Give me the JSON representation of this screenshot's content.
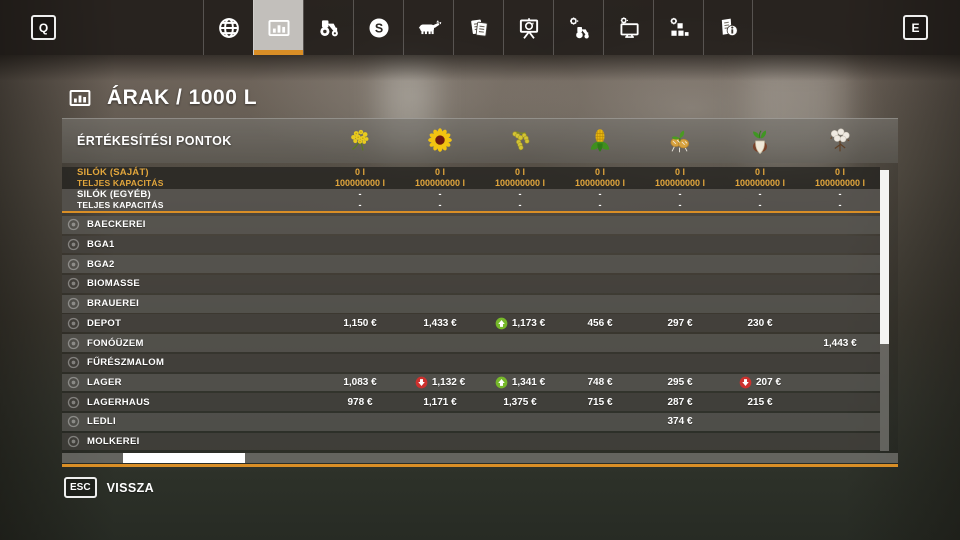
{
  "colors": {
    "accent": "#d98e26",
    "positive": "#76b82a",
    "negative": "#cc312e",
    "silo_own_text": "#e2a63c"
  },
  "topbar": {
    "left_key": "Q",
    "right_key": "E",
    "tabs": [
      {
        "id": "map",
        "icon": "globe-icon",
        "selected": false
      },
      {
        "id": "prices",
        "icon": "chart-icon",
        "selected": true
      },
      {
        "id": "garage",
        "icon": "tractor-icon",
        "selected": false
      },
      {
        "id": "finances",
        "icon": "coin-icon",
        "selected": false
      },
      {
        "id": "animals",
        "icon": "cow-icon",
        "selected": false
      },
      {
        "id": "contracts",
        "icon": "contracts-icon",
        "selected": false
      },
      {
        "id": "statistics",
        "icon": "easel-icon",
        "selected": false
      },
      {
        "id": "game-settings",
        "icon": "tractor-gear-icon",
        "selected": false
      },
      {
        "id": "display-settings",
        "icon": "monitor-gear-icon",
        "selected": false
      },
      {
        "id": "general-settings",
        "icon": "blocks-gear-icon",
        "selected": false
      },
      {
        "id": "help",
        "icon": "help-icon",
        "selected": false
      }
    ]
  },
  "page": {
    "title": "ÁRAK / 1000 L"
  },
  "table": {
    "header_label": "ÉRTÉKESÍTÉSI PONTOK",
    "columns": [
      {
        "id": "canola",
        "icon": "canola-icon"
      },
      {
        "id": "sunflower",
        "icon": "sunflower-icon"
      },
      {
        "id": "soybean",
        "icon": "soybean-icon"
      },
      {
        "id": "corn",
        "icon": "corn-icon"
      },
      {
        "id": "potato",
        "icon": "potato-icon"
      },
      {
        "id": "sugar-beet",
        "icon": "sugar-beet-icon"
      },
      {
        "id": "cotton",
        "icon": "cotton-icon"
      }
    ],
    "silo_rows": [
      {
        "label": "SILÓK (SAJÁT)",
        "sublabel": "TELJES KAPACITÁS",
        "style": "own",
        "amounts": [
          "0 l",
          "0 l",
          "0 l",
          "0 l",
          "0 l",
          "0 l",
          "0 l"
        ],
        "capacities": [
          "100000000 l",
          "100000000 l",
          "100000000 l",
          "100000000 l",
          "100000000 l",
          "100000000 l",
          "100000000 l"
        ]
      },
      {
        "label": "SILÓK (EGYÉB)",
        "sublabel": "TELJES KAPACITÁS",
        "style": "other",
        "amounts": [
          "-",
          "-",
          "-",
          "-",
          "-",
          "-",
          "-"
        ],
        "capacities": [
          "-",
          "-",
          "-",
          "-",
          "-",
          "-",
          "-"
        ]
      }
    ],
    "rows": [
      {
        "name": "BAECKEREI",
        "prices": [
          "",
          "",
          "",
          "",
          "",
          "",
          ""
        ],
        "trends": [
          "",
          "",
          "",
          "",
          "",
          "",
          ""
        ]
      },
      {
        "name": "BGA1",
        "prices": [
          "",
          "",
          "",
          "",
          "",
          "",
          ""
        ],
        "trends": [
          "",
          "",
          "",
          "",
          "",
          "",
          ""
        ]
      },
      {
        "name": "BGA2",
        "prices": [
          "",
          "",
          "",
          "",
          "",
          "",
          ""
        ],
        "trends": [
          "",
          "",
          "",
          "",
          "",
          "",
          ""
        ]
      },
      {
        "name": "BIOMASSE",
        "prices": [
          "",
          "",
          "",
          "",
          "",
          "",
          ""
        ],
        "trends": [
          "",
          "",
          "",
          "",
          "",
          "",
          ""
        ]
      },
      {
        "name": "BRAUEREI",
        "prices": [
          "",
          "",
          "",
          "",
          "",
          "",
          ""
        ],
        "trends": [
          "",
          "",
          "",
          "",
          "",
          "",
          ""
        ]
      },
      {
        "name": "DEPOT",
        "prices": [
          "1,150 €",
          "1,433 €",
          "1,173 €",
          "456 €",
          "297 €",
          "230 €",
          ""
        ],
        "trends": [
          "",
          "",
          "up",
          "",
          "",
          "",
          ""
        ]
      },
      {
        "name": "FONÓÜZEM",
        "prices": [
          "",
          "",
          "",
          "",
          "",
          "",
          "1,443 €"
        ],
        "trends": [
          "",
          "",
          "",
          "",
          "",
          "",
          ""
        ]
      },
      {
        "name": "FŰRÉSZMALOM",
        "prices": [
          "",
          "",
          "",
          "",
          "",
          "",
          ""
        ],
        "trends": [
          "",
          "",
          "",
          "",
          "",
          "",
          ""
        ]
      },
      {
        "name": "LAGER",
        "prices": [
          "1,083 €",
          "1,132 €",
          "1,341 €",
          "748 €",
          "295 €",
          "207 €",
          ""
        ],
        "trends": [
          "",
          "down",
          "up",
          "",
          "",
          "down",
          ""
        ]
      },
      {
        "name": "LAGERHAUS",
        "prices": [
          "978 €",
          "1,171 €",
          "1,375 €",
          "715 €",
          "287 €",
          "215 €",
          ""
        ],
        "trends": [
          "",
          "",
          "",
          "",
          "",
          "",
          ""
        ]
      },
      {
        "name": "LEDLI",
        "prices": [
          "",
          "",
          "",
          "",
          "374 €",
          "",
          ""
        ],
        "trends": [
          "",
          "",
          "",
          "",
          "",
          "",
          ""
        ]
      },
      {
        "name": "MOLKEREI",
        "prices": [
          "",
          "",
          "",
          "",
          "",
          "",
          ""
        ],
        "trends": [
          "",
          "",
          "",
          "",
          "",
          "",
          ""
        ]
      }
    ]
  },
  "footer": {
    "key": "ESC",
    "label": "VISSZA"
  }
}
